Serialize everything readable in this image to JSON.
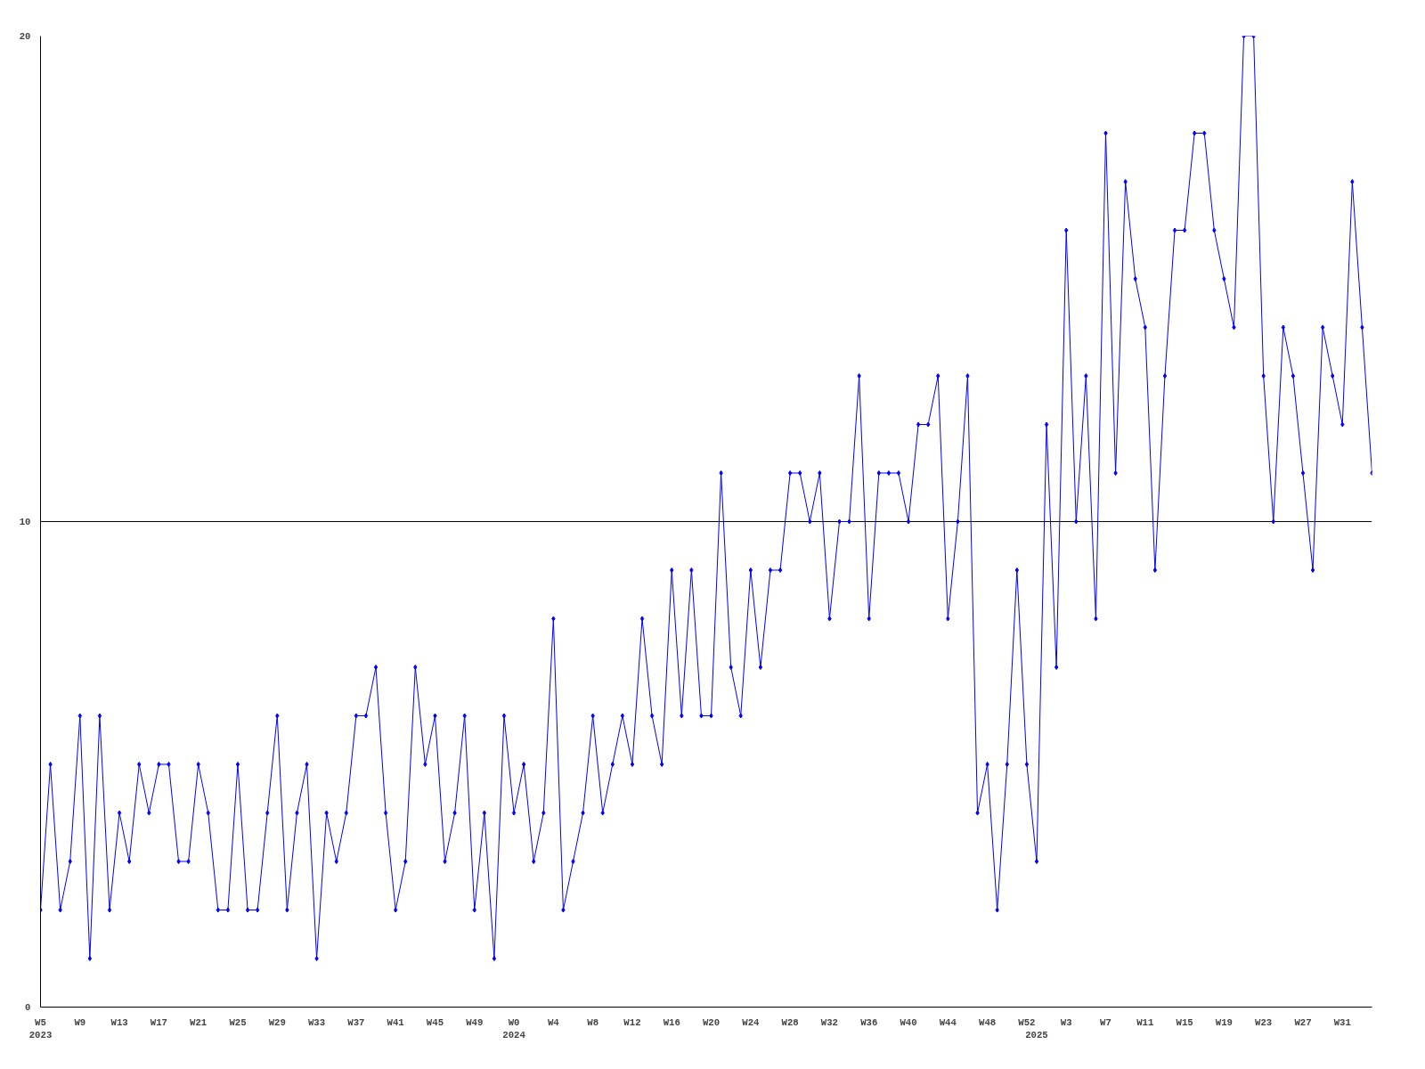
{
  "chart_data": {
    "type": "line",
    "categories": [
      "W5\n2023",
      null,
      null,
      null,
      "W9",
      null,
      null,
      null,
      "W13",
      null,
      null,
      null,
      "W17",
      null,
      null,
      null,
      "W21",
      null,
      null,
      null,
      "W25",
      null,
      null,
      null,
      "W29",
      null,
      null,
      null,
      "W33",
      null,
      null,
      null,
      "W37",
      null,
      null,
      null,
      "W41",
      null,
      null,
      null,
      "W45",
      null,
      null,
      null,
      "W49",
      null,
      null,
      null,
      "W0\n2024",
      null,
      null,
      null,
      "W4",
      null,
      null,
      null,
      "W8",
      null,
      null,
      null,
      "W12",
      null,
      null,
      null,
      "W16",
      null,
      null,
      null,
      "W20",
      null,
      null,
      null,
      "W24",
      null,
      null,
      null,
      "W28",
      null,
      null,
      null,
      "W32",
      null,
      null,
      null,
      "W36",
      null,
      null,
      null,
      "W40",
      null,
      null,
      null,
      "W44",
      null,
      null,
      null,
      "W48",
      null,
      null,
      null,
      "W52",
      "\n2025",
      null,
      null,
      "W3",
      null,
      null,
      null,
      "W7",
      null,
      null,
      null,
      "W11",
      null,
      null,
      null,
      "W15",
      null,
      null,
      null,
      "W19",
      null,
      null,
      null,
      "W23",
      null,
      null,
      null,
      "W27",
      null,
      null,
      null,
      "W31",
      null,
      null,
      null
    ],
    "series": [
      {
        "color": "#0000ff",
        "values": [
          2,
          5,
          2,
          3,
          6,
          1,
          6,
          2,
          4,
          3,
          5,
          4,
          5,
          5,
          3,
          3,
          5,
          4,
          2,
          2,
          5,
          2,
          2,
          4,
          6,
          2,
          4,
          5,
          1,
          4,
          3,
          4,
          6,
          6,
          7,
          4,
          2,
          3,
          7,
          5,
          6,
          3,
          4,
          6,
          2,
          4,
          1,
          6,
          4,
          5,
          3,
          4,
          8,
          2,
          3,
          4,
          6,
          4,
          5,
          6,
          5,
          8,
          6,
          5,
          9,
          6,
          9,
          6,
          6,
          11,
          7,
          6,
          9,
          7,
          9,
          9,
          11,
          11,
          10,
          11,
          8,
          10,
          10,
          13,
          8,
          11,
          11,
          11,
          10,
          12,
          12,
          13,
          8,
          10,
          13,
          4,
          5,
          2,
          5,
          9,
          5,
          3,
          12,
          7,
          16,
          10,
          13,
          8,
          18,
          11,
          17,
          15,
          14,
          9,
          13,
          16,
          16,
          18,
          18,
          16,
          15,
          14,
          20,
          20,
          13,
          10,
          14,
          13,
          11,
          9,
          14,
          13,
          12,
          17,
          14,
          11
        ]
      }
    ],
    "ylim": [
      0,
      20
    ],
    "yticks": [
      0,
      10,
      20
    ],
    "grid": "y",
    "marker": "diamond",
    "line_style": "solid"
  }
}
